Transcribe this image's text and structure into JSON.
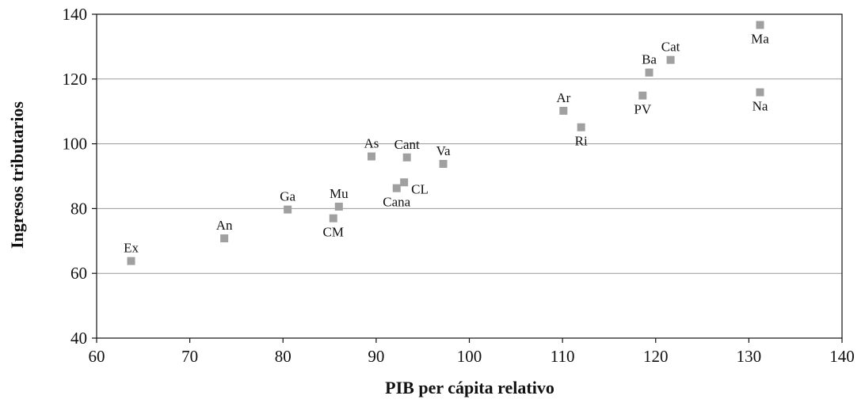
{
  "chart_data": {
    "type": "scatter",
    "title": "",
    "xlabel": "PIB per cápita relativo",
    "ylabel": "Ingresos tributarios",
    "xlim": [
      60,
      140
    ],
    "ylim": [
      40,
      140
    ],
    "x_ticks": [
      60,
      70,
      80,
      90,
      100,
      110,
      120,
      130,
      140
    ],
    "y_ticks": [
      40,
      60,
      80,
      100,
      120,
      140
    ],
    "grid": "horizontal",
    "marker": "square",
    "marker_color": "#a0a0a0",
    "points": [
      {
        "label": "Ex",
        "x": 63.7,
        "y": 63.8,
        "label_pos": "above"
      },
      {
        "label": "An",
        "x": 73.7,
        "y": 70.8,
        "label_pos": "above"
      },
      {
        "label": "Ga",
        "x": 80.5,
        "y": 79.7,
        "label_pos": "above"
      },
      {
        "label": "Mu",
        "x": 86.0,
        "y": 80.6,
        "label_pos": "above"
      },
      {
        "label": "CM",
        "x": 85.4,
        "y": 77.0,
        "label_pos": "below"
      },
      {
        "label": "As",
        "x": 89.5,
        "y": 96.1,
        "label_pos": "above"
      },
      {
        "label": "Cant",
        "x": 93.3,
        "y": 95.8,
        "label_pos": "above"
      },
      {
        "label": "Cana",
        "x": 92.2,
        "y": 86.3,
        "label_pos": "below"
      },
      {
        "label": "CL",
        "x": 93.0,
        "y": 88.1,
        "label_pos": "right"
      },
      {
        "label": "Va",
        "x": 97.2,
        "y": 93.8,
        "label_pos": "above"
      },
      {
        "label": "Ar",
        "x": 110.1,
        "y": 110.2,
        "label_pos": "above"
      },
      {
        "label": "Ri",
        "x": 112.0,
        "y": 105.1,
        "label_pos": "below"
      },
      {
        "label": "PV",
        "x": 118.6,
        "y": 114.9,
        "label_pos": "below"
      },
      {
        "label": "Ba",
        "x": 119.3,
        "y": 122.0,
        "label_pos": "above"
      },
      {
        "label": "Cat",
        "x": 121.6,
        "y": 125.9,
        "label_pos": "above"
      },
      {
        "label": "Ma",
        "x": 131.2,
        "y": 136.7,
        "label_pos": "below"
      },
      {
        "label": "Na",
        "x": 131.2,
        "y": 115.9,
        "label_pos": "below"
      }
    ]
  }
}
